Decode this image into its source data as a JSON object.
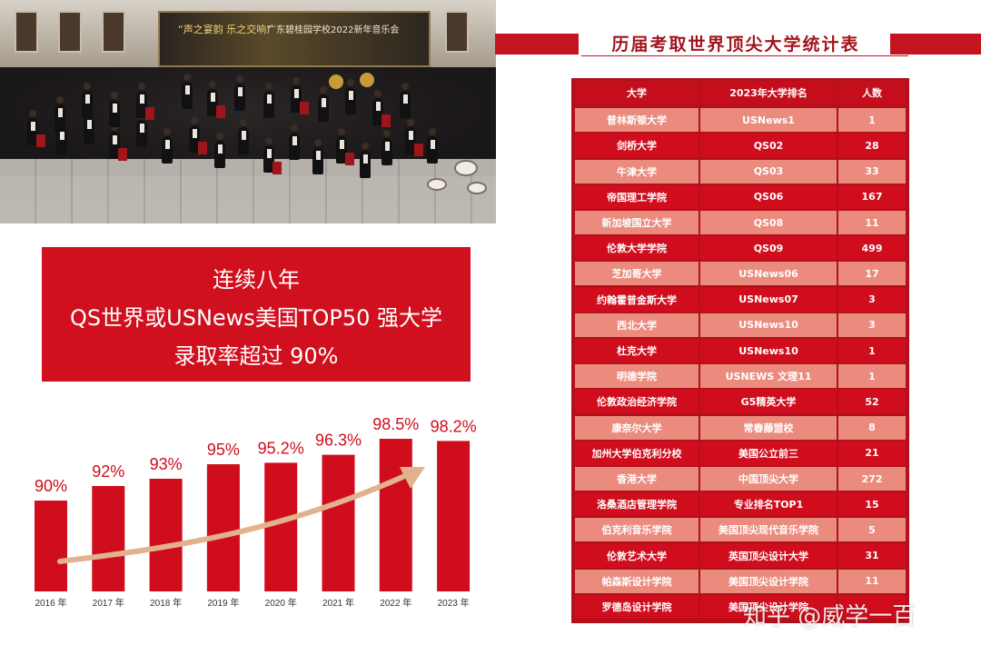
{
  "photo": {
    "banner_line1": "“声之宴韵 乐之交响”",
    "banner_line2": "广东碧桂园学校2022新年音乐会"
  },
  "tagline": {
    "line1": "连续八年",
    "line2": "QS世界或USNews美国TOP50 强大学",
    "line3": "录取率超过 90%"
  },
  "colors": {
    "bar": "#cf0d1d",
    "arrow": "#e2b28c",
    "table_dark": "#cf0d1d",
    "table_light": "#ea8b7e",
    "title": "#a3141c"
  },
  "chart_data": {
    "type": "bar",
    "categories": [
      "2016 年",
      "2017 年",
      "2018 年",
      "2019 年",
      "2020 年",
      "2021 年",
      "2022 年",
      "2023 年"
    ],
    "values": [
      90,
      92,
      93,
      95,
      95.2,
      96.3,
      98.5,
      98.2
    ],
    "data_labels": [
      "90%",
      "92%",
      "93%",
      "95%",
      "95.2%",
      "96.3%",
      "98.5%",
      "98.2%"
    ],
    "title": "",
    "xlabel": "",
    "ylabel": "",
    "trend_arrow": true,
    "grid": false
  },
  "table": {
    "title": "历届考取世界顶尖大学统计表",
    "headers": [
      "大学",
      "2023年大学排名",
      "人数"
    ],
    "rows": [
      [
        "普林斯顿大学",
        "USNews1",
        "1"
      ],
      [
        "剑桥大学",
        "QS02",
        "28"
      ],
      [
        "牛津大学",
        "QS03",
        "33"
      ],
      [
        "帝国理工学院",
        "QS06",
        "167"
      ],
      [
        "新加坡国立大学",
        "QS08",
        "11"
      ],
      [
        "伦敦大学学院",
        "QS09",
        "499"
      ],
      [
        "芝加哥大学",
        "USNews06",
        "17"
      ],
      [
        "约翰霍普金斯大学",
        "USNews07",
        "3"
      ],
      [
        "西北大学",
        "USNews10",
        "3"
      ],
      [
        "杜克大学",
        "USNews10",
        "1"
      ],
      [
        "明德学院",
        "USNEWS 文理11",
        "1"
      ],
      [
        "伦敦政治经济学院",
        "G5精英大学",
        "52"
      ],
      [
        "康奈尔大学",
        "常春藤盟校",
        "8"
      ],
      [
        "加州大学伯克利分校",
        "美国公立前三",
        "21"
      ],
      [
        "香港大学",
        "中国顶尖大学",
        "272"
      ],
      [
        "洛桑酒店管理学院",
        "专业排名TOP1",
        "15"
      ],
      [
        "伯克利音乐学院",
        "美国顶尖现代音乐学院",
        "5"
      ],
      [
        "伦敦艺术大学",
        "英国顶尖设计大学",
        "31"
      ],
      [
        "帕森斯设计学院",
        "美国顶尖设计学院",
        "11"
      ],
      [
        "罗德岛设计学院",
        "美国顶尖设计学院",
        ""
      ]
    ]
  },
  "watermark": "知乎 @威学一百"
}
